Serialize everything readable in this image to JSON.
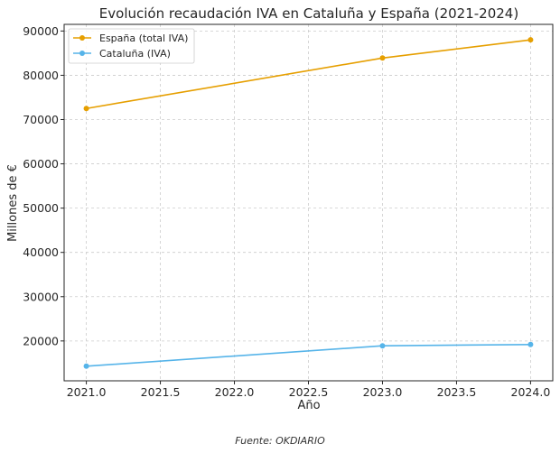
{
  "chart_data": {
    "type": "line",
    "title": "Evolución recaudación IVA en Cataluña y España (2021-2024)",
    "xlabel": "Año",
    "ylabel": "Millones de €",
    "xlim": [
      2020.85,
      2024.15
    ],
    "ylim": [
      11000,
      91500
    ],
    "xticks": [
      2021.0,
      2021.5,
      2022.0,
      2022.5,
      2023.0,
      2023.5,
      2024.0
    ],
    "xtick_labels": [
      "2021.0",
      "2021.5",
      "2022.0",
      "2022.5",
      "2023.0",
      "2023.5",
      "2024.0"
    ],
    "yticks": [
      20000,
      30000,
      40000,
      50000,
      60000,
      70000,
      80000,
      90000
    ],
    "ytick_labels": [
      "20000",
      "30000",
      "40000",
      "50000",
      "60000",
      "70000",
      "80000",
      "90000"
    ],
    "grid": true,
    "legend_position": "top-left",
    "series": [
      {
        "name": "España (total IVA)",
        "color": "#E69F00",
        "x": [
          2021,
          2023,
          2024
        ],
        "values": [
          72500,
          83900,
          88000
        ]
      },
      {
        "name": "Cataluña (IVA)",
        "color": "#56B4E9",
        "x": [
          2021,
          2023,
          2024
        ],
        "values": [
          14300,
          18900,
          19200
        ]
      }
    ],
    "source": "Fuente: OKDIARIO"
  }
}
